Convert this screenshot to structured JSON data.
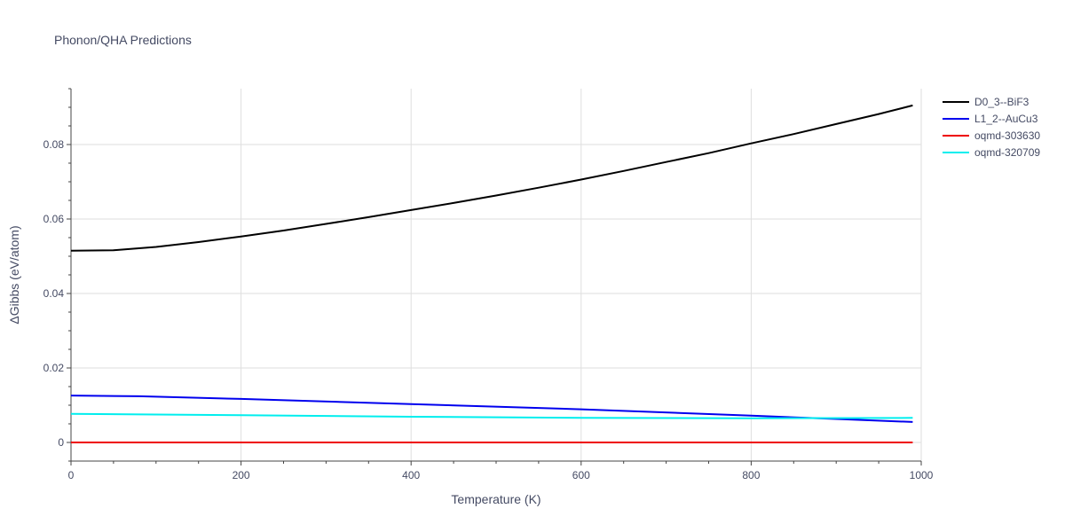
{
  "chart_data": {
    "type": "line",
    "title": "Phonon/QHA Predictions",
    "xlabel": "Temperature (K)",
    "ylabel": "ΔGibbs (eV/atom)",
    "xlim": [
      0,
      1000
    ],
    "ylim": [
      -0.005,
      0.095
    ],
    "xticks": [
      0,
      200,
      400,
      600,
      800,
      1000
    ],
    "xtick_labels": [
      "0",
      "200",
      "400",
      "600",
      "800",
      "1000"
    ],
    "yticks": [
      0,
      0.02,
      0.04,
      0.06,
      0.08
    ],
    "ytick_labels": [
      "0",
      "0.02",
      "0.04",
      "0.06",
      "0.08"
    ],
    "grid": true,
    "legend_position": "top-right",
    "series": [
      {
        "name": "D0_3--BiF3",
        "color": "#000000",
        "x": [
          0,
          50,
          100,
          150,
          200,
          250,
          300,
          350,
          400,
          450,
          500,
          550,
          600,
          650,
          700,
          750,
          800,
          850,
          900,
          950,
          990
        ],
        "y": [
          0.0515,
          0.0516,
          0.0525,
          0.0538,
          0.0553,
          0.0569,
          0.0587,
          0.0605,
          0.0624,
          0.0643,
          0.0663,
          0.0684,
          0.0706,
          0.0729,
          0.0753,
          0.0777,
          0.0803,
          0.0828,
          0.0855,
          0.0882,
          0.0905
        ]
      },
      {
        "name": "L1_2--AuCu3",
        "color": "#0000ee",
        "x": [
          0,
          80,
          200,
          400,
          600,
          800,
          900,
          990
        ],
        "y": [
          0.0126,
          0.0124,
          0.0117,
          0.0103,
          0.0089,
          0.0072,
          0.0063,
          0.0055
        ]
      },
      {
        "name": "oqmd-303630",
        "color": "#ee0000",
        "x": [
          0,
          990
        ],
        "y": [
          0.0,
          0.0
        ]
      },
      {
        "name": "oqmd-320709",
        "color": "#00eeee",
        "x": [
          0,
          200,
          400,
          600,
          800,
          990
        ],
        "y": [
          0.0077,
          0.0073,
          0.0069,
          0.0066,
          0.0065,
          0.0066
        ]
      }
    ]
  }
}
